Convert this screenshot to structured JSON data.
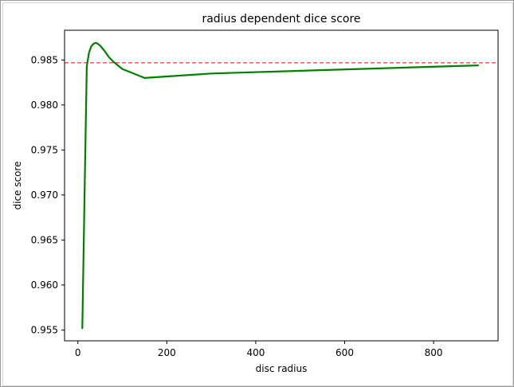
{
  "chart_data": {
    "type": "line",
    "title": "radius dependent dice score",
    "xlabel": "disc radius",
    "ylabel": "dice score",
    "xlim": [
      -30,
      945
    ],
    "ylim": [
      0.9538,
      0.9883
    ],
    "x_ticks": [
      0,
      200,
      400,
      600,
      800
    ],
    "x_tick_labels": [
      "0",
      "200",
      "400",
      "600",
      "800"
    ],
    "y_ticks": [
      0.955,
      0.96,
      0.965,
      0.97,
      0.975,
      0.98,
      0.985
    ],
    "y_tick_labels": [
      "0.955",
      "0.960",
      "0.965",
      "0.970",
      "0.975",
      "0.980",
      "0.985"
    ],
    "grid": false,
    "series": [
      {
        "color": "#008000",
        "x": [
          10,
          15,
          20,
          25,
          30,
          35,
          40,
          45,
          50,
          60,
          70,
          80,
          100,
          150,
          300,
          900
        ],
        "y": [
          0.9552,
          0.97,
          0.9843,
          0.9858,
          0.9865,
          0.9868,
          0.9869,
          0.9868,
          0.9866,
          0.986,
          0.9853,
          0.9848,
          0.984,
          0.983,
          0.9835,
          0.9844
        ]
      }
    ],
    "reference_line": {
      "y": 0.98468,
      "color": "#ff0000",
      "style": "dashed"
    }
  }
}
